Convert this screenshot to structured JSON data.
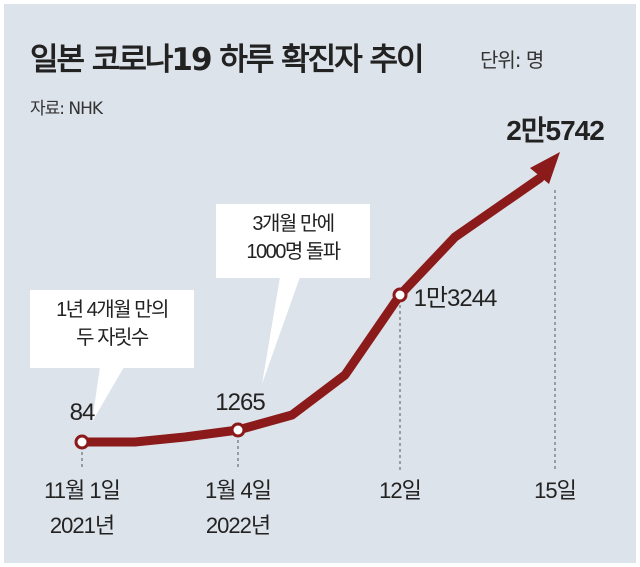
{
  "chart_data": {
    "type": "line",
    "title": "일본 코로나19 하루 확진자 추이",
    "unit": "단위: 명",
    "source": "자료: NHK",
    "series_name": "일본 하루 확진자",
    "points": [
      {
        "x": "2021년 11월 1일",
        "label_date": "11월 1일",
        "label_year": "2021년",
        "value": 84,
        "value_label": "84"
      },
      {
        "x": "2022년 1월 4일",
        "label_date": "1월 4일",
        "label_year": "2022년",
        "value": 1265,
        "value_label": "1265"
      },
      {
        "x": "2022년 1월 12일",
        "label_date": "12일",
        "label_year": "",
        "value": 13244,
        "value_label": "1만3244"
      },
      {
        "x": "2022년 1월 15일",
        "label_date": "15일",
        "label_year": "",
        "value": 25742,
        "value_label": "2만5742"
      }
    ],
    "annotations": [
      {
        "line1": "1년 4개월 만의",
        "line2": "두 자릿수"
      },
      {
        "line1": "3개월 만에",
        "line2": "1000명 돌파"
      }
    ],
    "line_color": "#8b1a1a",
    "background": "#dde3ea"
  }
}
